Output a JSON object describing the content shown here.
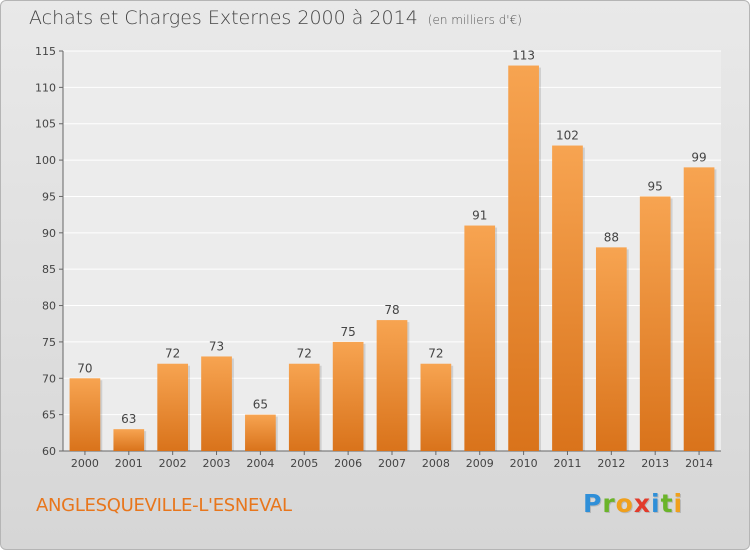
{
  "header": {
    "title": "Achats et Charges Externes 2000 à 2014",
    "subtitle": "(en milliers d'€)"
  },
  "footer": {
    "city": "ANGLESQUEVILLE-L'ESNEVAL",
    "brand_letters": [
      {
        "char": "P",
        "color": "#2f8fd8"
      },
      {
        "char": "r",
        "color": "#6bb42a"
      },
      {
        "char": "o",
        "color": "#f0a01c"
      },
      {
        "char": "x",
        "color": "#e23b2b"
      },
      {
        "char": "i",
        "color": "#2f8fd8"
      },
      {
        "char": "t",
        "color": "#6bb42a"
      },
      {
        "char": "i",
        "color": "#f0a01c"
      }
    ]
  },
  "chart_data": {
    "type": "bar",
    "title": "Achats et Charges Externes 2000 à 2014",
    "subtitle": "(en milliers d'€)",
    "xlabel": "",
    "ylabel": "",
    "categories": [
      "2000",
      "2001",
      "2002",
      "2003",
      "2004",
      "2005",
      "2006",
      "2007",
      "2008",
      "2009",
      "2010",
      "2011",
      "2012",
      "2013",
      "2014"
    ],
    "values": [
      70,
      63,
      72,
      73,
      65,
      72,
      75,
      78,
      72,
      91,
      113,
      102,
      88,
      95,
      99
    ],
    "ylim": [
      60,
      115
    ],
    "yticks": [
      60,
      65,
      70,
      75,
      80,
      85,
      90,
      95,
      100,
      105,
      110,
      115
    ],
    "grid": true,
    "bar_color_top": "#f7a451",
    "bar_color_bottom": "#d9731b"
  }
}
